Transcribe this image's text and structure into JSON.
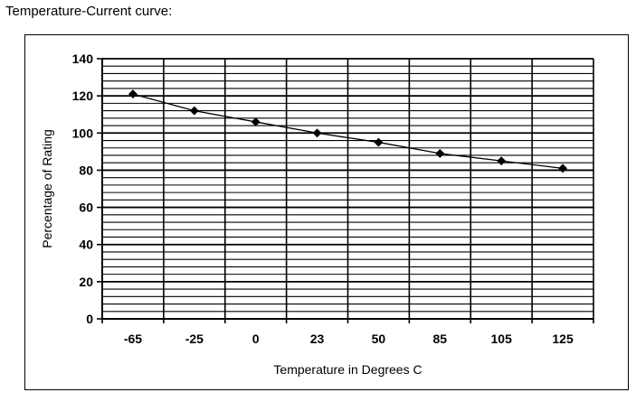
{
  "heading": "Temperature-Current curve:",
  "chart_data": {
    "type": "line",
    "title": "",
    "xlabel": "Temperature in Degrees C",
    "ylabel": "Percentage of Rating",
    "categories": [
      "-65",
      "-25",
      "0",
      "23",
      "50",
      "85",
      "105",
      "125"
    ],
    "y_ticks": [
      "0",
      "20",
      "40",
      "60",
      "80",
      "100",
      "120",
      "140"
    ],
    "ylim": [
      0,
      140
    ],
    "grid": true,
    "legend": "none",
    "series": [
      {
        "values": [
          121,
          112,
          106,
          100,
          95,
          89,
          85,
          81
        ]
      }
    ],
    "line_color": "#000000",
    "grid_color": "#000000"
  }
}
